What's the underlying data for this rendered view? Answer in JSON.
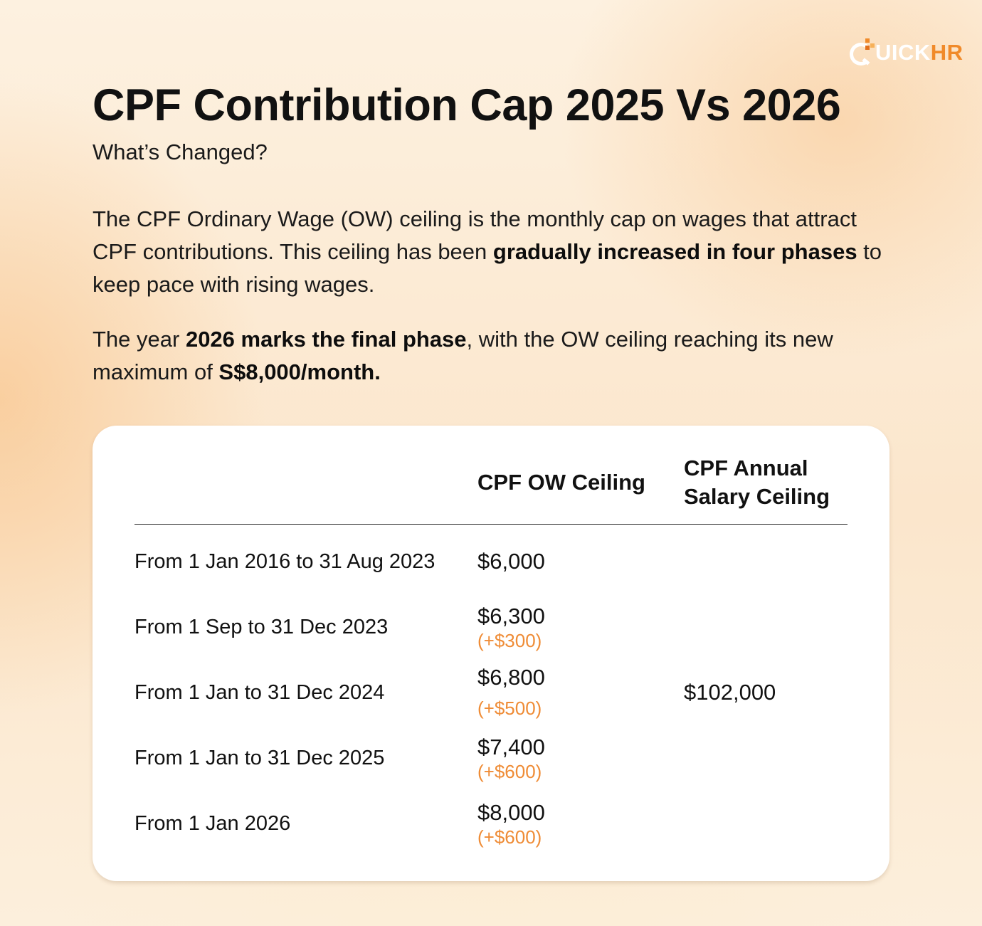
{
  "logo": {
    "text_main": "UICK",
    "text_accent": "HR",
    "brand_color": "#f08a2a"
  },
  "title": "CPF Contribution Cap 2025 Vs 2026",
  "subtitle": "What’s Changed?",
  "paragraph1": {
    "part1": "The CPF Ordinary Wage (OW) ceiling is the monthly cap on wages that attract CPF contributions. This ceiling has been ",
    "bold": "gradually increased in four phases",
    "part2": " to keep pace with rising wages."
  },
  "paragraph2": {
    "part1": "The year ",
    "bold1": "2026 marks the final phase",
    "part2": ", with the OW ceiling reaching its new maximum of ",
    "bold2": "S$8,000/month."
  },
  "table": {
    "headers": {
      "period": "",
      "ow_ceiling": "CPF OW Ceiling",
      "annual_ceiling": "CPF Annual Salary Ceiling"
    },
    "rows": [
      {
        "period": "From 1 Jan 2016 to 31 Aug 2023",
        "ow": "$6,000",
        "change": ""
      },
      {
        "period": "From 1 Sep to 31 Dec 2023",
        "ow": "$6,300",
        "change": "(+$300)"
      },
      {
        "period": "From 1 Jan to 31 Dec 2024",
        "ow": "$6,800",
        "change": "(+$500)"
      },
      {
        "period": "From 1 Jan to 31 Dec 2025",
        "ow": "$7,400",
        "change": "(+$600)"
      },
      {
        "period": "From 1 Jan 2026",
        "ow": "$8,000",
        "change": "(+$600)"
      }
    ],
    "annual_salary_ceiling": "$102,000",
    "change_color": "#ef8c36"
  }
}
